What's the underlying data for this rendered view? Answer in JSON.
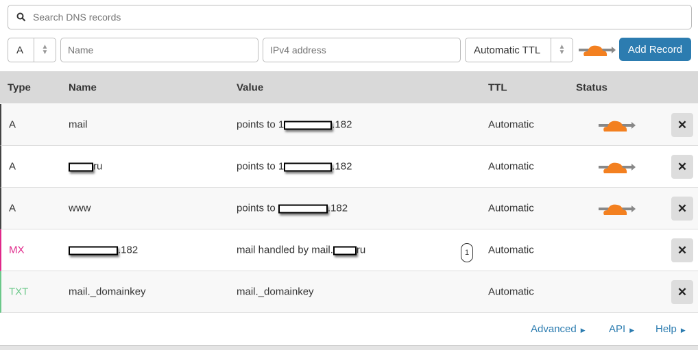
{
  "search": {
    "placeholder": "Search DNS records"
  },
  "form": {
    "type": "A",
    "name_placeholder": "Name",
    "value_placeholder": "IPv4 address",
    "ttl": "Automatic TTL",
    "add_label": "Add Record"
  },
  "columns": {
    "type": "Type",
    "name": "Name",
    "value": "Value",
    "ttl": "TTL",
    "status": "Status"
  },
  "records": [
    {
      "type": "A",
      "type_color": "#333333",
      "name_pre": "mail",
      "name_post": "",
      "value_pre": "points to 1",
      "value_post": ".182",
      "ttl": "Automatic",
      "proxied": true
    },
    {
      "type": "A",
      "type_color": "#333333",
      "name_pre": "",
      "name_post": "ru",
      "value_pre": "points to 1",
      "value_post": ".182",
      "ttl": "Automatic",
      "proxied": true
    },
    {
      "type": "A",
      "type_color": "#333333",
      "name_pre": "www",
      "name_post": "",
      "value_pre": "points to ",
      "value_post": ".182",
      "ttl": "Automatic",
      "proxied": true
    },
    {
      "type": "MX",
      "type_color": "#e0288a",
      "name_pre": "",
      "name_post": ".182",
      "value_pre": "mail handled by mail.",
      "value_post": "ru",
      "priority": "1",
      "ttl": "Automatic",
      "proxied": false
    },
    {
      "type": "TXT",
      "type_color": "#6cc88a",
      "name_pre": "mail._domainkey",
      "name_post": "",
      "value_pre": "mail._domainkey",
      "value_post": "",
      "ttl": "Automatic",
      "proxied": false
    }
  ],
  "footer": {
    "advanced": "Advanced",
    "api": "API",
    "help": "Help"
  },
  "colors": {
    "accent": "#2c7cb0",
    "cloud": "#f38020"
  }
}
